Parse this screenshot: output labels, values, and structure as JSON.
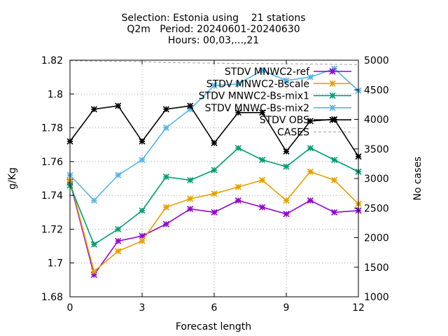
{
  "chart_data": {
    "type": "line",
    "title_lines": [
      "Selection: Estonia using    21 stations",
      "Q2m   Period: 20240601-20240630",
      "Hours: 00,03,...,21"
    ],
    "xlabel": "Forecast length",
    "ylabel": "g/Kg",
    "y2label": "No cases",
    "xlim": [
      0,
      12
    ],
    "ylim": [
      1.68,
      1.82
    ],
    "y2lim": [
      1000,
      5000
    ],
    "x_ticks": [
      "0",
      "3",
      "6",
      "9",
      "12"
    ],
    "y_ticks": [
      "1.68",
      "1.7",
      "1.72",
      "1.74",
      "1.76",
      "1.78",
      "1.8",
      "1.82"
    ],
    "y2_ticks": [
      "1000",
      "1500",
      "2000",
      "2500",
      "3000",
      "3500",
      "4000",
      "4500",
      "5000"
    ],
    "grid": true,
    "legend_position": "top-right",
    "x": [
      0,
      1,
      2,
      3,
      4,
      5,
      6,
      7,
      8,
      9,
      10,
      11,
      12
    ],
    "series": [
      {
        "name": "STDV MNWC2-ref",
        "color": "#9400d3",
        "values": [
          1.748,
          1.693,
          1.713,
          1.716,
          1.723,
          1.732,
          1.73,
          1.737,
          1.733,
          1.729,
          1.737,
          1.73,
          1.731
        ]
      },
      {
        "name": "STDV MNWC2-Bscale",
        "color": "#e69f00",
        "values": [
          1.749,
          1.695,
          1.707,
          1.713,
          1.733,
          1.738,
          1.741,
          1.745,
          1.749,
          1.737,
          1.754,
          1.749,
          1.735
        ]
      },
      {
        "name": "STDV MNWC2-Bs-mix1",
        "color": "#009e73",
        "values": [
          1.746,
          1.711,
          1.72,
          1.731,
          1.751,
          1.749,
          1.755,
          1.768,
          1.761,
          1.757,
          1.768,
          1.761,
          1.754
        ]
      },
      {
        "name": "STDV MNWC-Bs-mix2",
        "color": "#56b4e9",
        "values": [
          1.752,
          1.737,
          1.752,
          1.761,
          1.78,
          1.791,
          1.805,
          1.806,
          1.814,
          1.808,
          1.81,
          1.815,
          1.802
        ]
      },
      {
        "name": "STDV OBS",
        "color": "#000000",
        "values": [
          1.772,
          1.791,
          1.793,
          1.772,
          1.791,
          1.793,
          1.771,
          1.789,
          1.789,
          1.766,
          1.784,
          1.785,
          1.763
        ]
      },
      {
        "name": "CASES",
        "color": "#a0a0a0",
        "axis": "y2",
        "dashed": true,
        "values": [
          4990,
          4985,
          4980,
          4975,
          4960,
          4955,
          4950,
          4945,
          4945,
          4940,
          4935,
          4930,
          4925
        ]
      }
    ]
  }
}
